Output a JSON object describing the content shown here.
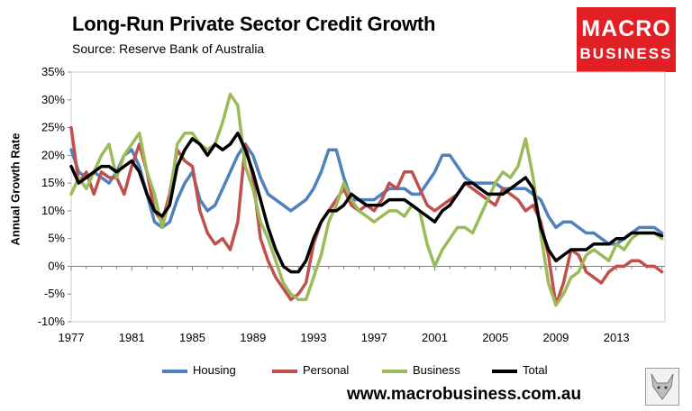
{
  "header": {
    "title": "Long-Run Private Sector Credit Growth",
    "subtitle": "Source: Reserve Bank of Australia"
  },
  "logo": {
    "line1": "MACRO",
    "line2": "BUSINESS"
  },
  "footer": {
    "url": "www.macrobusiness.com.au"
  },
  "colors": {
    "housing": "#4f81bd",
    "personal": "#c0504d",
    "business": "#9bbb59",
    "total": "#000000"
  },
  "chart_data": {
    "type": "line",
    "ylabel": "Annual Growth Rate",
    "xlim": [
      1977,
      2016.2
    ],
    "ylim": [
      -10,
      35
    ],
    "yticks": [
      -10,
      -5,
      0,
      5,
      10,
      15,
      20,
      25,
      30,
      35
    ],
    "ytick_labels": [
      "-10%",
      "-5%",
      "0%",
      "5%",
      "10%",
      "15%",
      "20%",
      "25%",
      "30%",
      "35%"
    ],
    "xticks": [
      1977,
      1981,
      1985,
      1989,
      1993,
      1997,
      2001,
      2005,
      2009,
      2013
    ],
    "xtick_labels": [
      "1977",
      "1981",
      "1985",
      "1989",
      "1993",
      "1997",
      "2001",
      "2005",
      "2009",
      "2013"
    ],
    "legend": "bottom",
    "series": [
      {
        "name": "Housing",
        "x": [
          1977.0,
          1977.5,
          1978.0,
          1978.5,
          1979.0,
          1979.5,
          1980.0,
          1980.5,
          1981.0,
          1981.5,
          1982.0,
          1982.5,
          1983.0,
          1983.5,
          1984.0,
          1984.5,
          1985.0,
          1985.5,
          1986.0,
          1986.5,
          1987.0,
          1987.5,
          1988.0,
          1988.5,
          1989.0,
          1989.5,
          1990.0,
          1990.5,
          1991.0,
          1991.5,
          1992.0,
          1992.5,
          1993.0,
          1993.5,
          1994.0,
          1994.5,
          1995.0,
          1995.5,
          1996.0,
          1996.5,
          1997.0,
          1997.5,
          1998.0,
          1998.5,
          1999.0,
          1999.5,
          2000.0,
          2000.5,
          2001.0,
          2001.5,
          2002.0,
          2002.5,
          2003.0,
          2003.5,
          2004.0,
          2004.5,
          2005.0,
          2005.5,
          2006.0,
          2006.5,
          2007.0,
          2007.5,
          2008.0,
          2008.5,
          2009.0,
          2009.5,
          2010.0,
          2010.5,
          2011.0,
          2011.5,
          2012.0,
          2012.5,
          2013.0,
          2013.5,
          2014.0,
          2014.5,
          2015.0,
          2015.5,
          2016.0
        ],
        "values": [
          21,
          17,
          16,
          17,
          16,
          15,
          17,
          20,
          21,
          18,
          13,
          8,
          7,
          8,
          12,
          15,
          17,
          12,
          10,
          11,
          14,
          17,
          20,
          22,
          20,
          16,
          13,
          12,
          11,
          10,
          11,
          12,
          14,
          17,
          21,
          21,
          16,
          12,
          12,
          12,
          12,
          13,
          14,
          14,
          14,
          13,
          13,
          15,
          17,
          20,
          20,
          18,
          16,
          15,
          15,
          15,
          15,
          14,
          14,
          14,
          14,
          13,
          12,
          9,
          7,
          8,
          8,
          7,
          6,
          6,
          5,
          4,
          4,
          5,
          6,
          7,
          7,
          7,
          6
        ]
      },
      {
        "name": "Personal",
        "x": [
          1977.0,
          1977.5,
          1978.0,
          1978.5,
          1979.0,
          1979.5,
          1980.0,
          1980.5,
          1981.0,
          1981.5,
          1982.0,
          1982.5,
          1983.0,
          1983.5,
          1984.0,
          1984.5,
          1985.0,
          1985.5,
          1986.0,
          1986.5,
          1987.0,
          1987.5,
          1988.0,
          1988.5,
          1989.0,
          1989.5,
          1990.0,
          1990.5,
          1991.0,
          1991.5,
          1992.0,
          1992.5,
          1993.0,
          1993.5,
          1994.0,
          1994.5,
          1995.0,
          1995.5,
          1996.0,
          1996.5,
          1997.0,
          1997.5,
          1998.0,
          1998.5,
          1999.0,
          1999.5,
          2000.0,
          2000.5,
          2001.0,
          2001.5,
          2002.0,
          2002.5,
          2003.0,
          2003.5,
          2004.0,
          2004.5,
          2005.0,
          2005.5,
          2006.0,
          2006.5,
          2007.0,
          2007.5,
          2008.0,
          2008.5,
          2009.0,
          2009.5,
          2010.0,
          2010.5,
          2011.0,
          2011.5,
          2012.0,
          2012.5,
          2013.0,
          2013.5,
          2014.0,
          2014.5,
          2015.0,
          2015.5,
          2016.0
        ],
        "values": [
          25,
          15,
          17,
          13,
          17,
          16,
          16,
          13,
          18,
          22,
          17,
          10,
          8,
          13,
          21,
          19,
          18,
          10,
          6,
          4,
          5,
          3,
          8,
          22,
          16,
          5,
          1,
          -2,
          -4,
          -6,
          -5,
          -3,
          4,
          8,
          10,
          12,
          14,
          11,
          10,
          11,
          10,
          12,
          15,
          14,
          17,
          17,
          14,
          11,
          10,
          11,
          12,
          13,
          15,
          14,
          13,
          12,
          11,
          14,
          13,
          12,
          10,
          11,
          8,
          2,
          -7,
          -3,
          3,
          2,
          -1,
          -2,
          -3,
          -1,
          0,
          0,
          1,
          1,
          0,
          0,
          -1
        ]
      },
      {
        "name": "Business",
        "x": [
          1977.0,
          1977.5,
          1978.0,
          1978.5,
          1979.0,
          1979.5,
          1980.0,
          1980.5,
          1981.0,
          1981.5,
          1982.0,
          1982.5,
          1983.0,
          1983.5,
          1984.0,
          1984.5,
          1985.0,
          1985.5,
          1986.0,
          1986.5,
          1987.0,
          1987.5,
          1988.0,
          1988.5,
          1989.0,
          1989.5,
          1990.0,
          1990.5,
          1991.0,
          1991.5,
          1992.0,
          1992.5,
          1993.0,
          1993.5,
          1994.0,
          1994.5,
          1995.0,
          1995.5,
          1996.0,
          1996.5,
          1997.0,
          1997.5,
          1998.0,
          1998.5,
          1999.0,
          1999.5,
          2000.0,
          2000.5,
          2001.0,
          2001.5,
          2002.0,
          2002.5,
          2003.0,
          2003.5,
          2004.0,
          2004.5,
          2005.0,
          2005.5,
          2006.0,
          2006.5,
          2007.0,
          2007.5,
          2008.0,
          2008.5,
          2009.0,
          2009.5,
          2010.0,
          2010.5,
          2011.0,
          2011.5,
          2012.0,
          2012.5,
          2013.0,
          2013.5,
          2014.0,
          2014.5,
          2015.0,
          2015.5,
          2016.0
        ],
        "values": [
          13,
          16,
          14,
          17,
          20,
          22,
          16,
          20,
          22,
          24,
          17,
          13,
          7,
          12,
          22,
          24,
          24,
          22,
          21,
          22,
          26,
          31,
          29,
          18,
          14,
          8,
          5,
          1,
          -3,
          -5,
          -6,
          -6,
          -2,
          2,
          8,
          11,
          15,
          12,
          10,
          9,
          8,
          9,
          10,
          10,
          9,
          11,
          10,
          4,
          0,
          3,
          5,
          7,
          7,
          6,
          9,
          12,
          15,
          17,
          16,
          18,
          23,
          16,
          6,
          -3,
          -7,
          -5,
          -2,
          -1,
          2,
          3,
          2,
          1,
          4,
          3,
          5,
          6,
          6,
          6,
          5
        ]
      },
      {
        "name": "Total",
        "x": [
          1977.0,
          1977.5,
          1978.0,
          1978.5,
          1979.0,
          1979.5,
          1980.0,
          1980.5,
          1981.0,
          1981.5,
          1982.0,
          1982.5,
          1983.0,
          1983.5,
          1984.0,
          1984.5,
          1985.0,
          1985.5,
          1986.0,
          1986.5,
          1987.0,
          1987.5,
          1988.0,
          1988.5,
          1989.0,
          1989.5,
          1990.0,
          1990.5,
          1991.0,
          1991.5,
          1992.0,
          1992.5,
          1993.0,
          1993.5,
          1994.0,
          1994.5,
          1995.0,
          1995.5,
          1996.0,
          1996.5,
          1997.0,
          1997.5,
          1998.0,
          1998.5,
          1999.0,
          1999.5,
          2000.0,
          2000.5,
          2001.0,
          2001.5,
          2002.0,
          2002.5,
          2003.0,
          2003.5,
          2004.0,
          2004.5,
          2005.0,
          2005.5,
          2006.0,
          2006.5,
          2007.0,
          2007.5,
          2008.0,
          2008.5,
          2009.0,
          2009.5,
          2010.0,
          2010.5,
          2011.0,
          2011.5,
          2012.0,
          2012.5,
          2013.0,
          2013.5,
          2014.0,
          2014.5,
          2015.0,
          2015.5,
          2016.0
        ],
        "values": [
          18,
          15,
          16,
          17,
          18,
          18,
          17,
          18,
          19,
          17,
          13,
          10,
          9,
          11,
          18,
          21,
          23,
          22,
          20,
          22,
          21,
          22,
          24,
          21,
          17,
          12,
          7,
          3,
          0,
          -1,
          -1,
          1,
          5,
          8,
          10,
          10,
          11,
          13,
          12,
          11,
          11,
          11,
          12,
          12,
          12,
          11,
          10,
          9,
          8,
          10,
          11,
          13,
          15,
          15,
          14,
          13,
          13,
          13,
          14,
          15,
          16,
          14,
          7,
          3,
          1,
          2,
          3,
          3,
          3,
          4,
          4,
          4,
          5,
          5,
          6,
          6,
          6,
          6,
          5.5
        ]
      }
    ]
  }
}
